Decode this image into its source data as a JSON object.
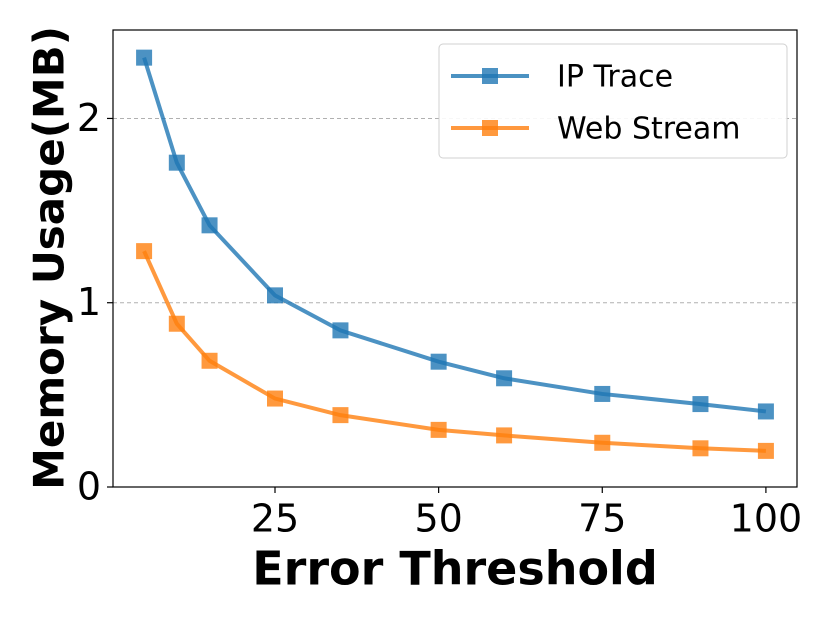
{
  "chart_data": {
    "type": "line",
    "x_label": "Error Threshold",
    "y_label": "Memory Usage(MB)",
    "x": [
      5,
      10,
      15,
      25,
      35,
      50,
      60,
      75,
      90,
      100
    ],
    "series": [
      {
        "name": "IP Trace",
        "color": "#1f77b4",
        "values": [
          2.33,
          1.76,
          1.42,
          1.04,
          0.85,
          0.68,
          0.59,
          0.505,
          0.45,
          0.41
        ]
      },
      {
        "name": "Web Stream",
        "color": "#ff7f0e",
        "values": [
          1.28,
          0.886,
          0.685,
          0.48,
          0.39,
          0.31,
          0.28,
          0.24,
          0.21,
          0.196
        ]
      }
    ],
    "xlim": [
      0.25,
      104.75
    ],
    "ylim": [
      0,
      2.48
    ],
    "xticks": [
      25,
      50,
      75,
      100
    ],
    "yticks": [
      0,
      1,
      2
    ],
    "grid": true,
    "legend": "upper right"
  }
}
